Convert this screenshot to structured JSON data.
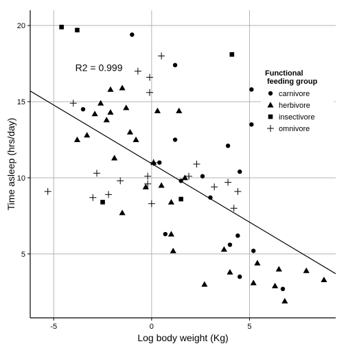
{
  "chart_data": {
    "type": "scatter",
    "xlabel": "Log body weight (Kg)",
    "ylabel": "Time asleep (hrs/day)",
    "xlim": [
      -6.2,
      9.4
    ],
    "ylim": [
      0.8,
      21.0
    ],
    "x_ticks": [
      -5,
      0,
      5
    ],
    "y_ticks": [
      5,
      10,
      15,
      20
    ],
    "grid": true,
    "annotation": {
      "text": "R2 = 0.999",
      "x": -3.9,
      "y": 17.0
    },
    "regression": {
      "x0": -6.2,
      "y0": 15.7,
      "x1": 9.4,
      "y1": 3.7
    },
    "legend": {
      "title": "Functional\nfeeding group",
      "position": "right",
      "entries": [
        {
          "label": "carnivore",
          "shape": "circle"
        },
        {
          "label": "herbivore",
          "shape": "triangle"
        },
        {
          "label": "insectivore",
          "shape": "square"
        },
        {
          "label": "omnivore",
          "shape": "plus"
        }
      ]
    },
    "series": [
      {
        "name": "carnivore",
        "shape": "circle",
        "points": [
          [
            -1.0,
            19.4
          ],
          [
            1.2,
            17.4
          ],
          [
            5.1,
            15.8
          ],
          [
            -3.5,
            14.5
          ],
          [
            5.1,
            13.5
          ],
          [
            1.2,
            12.5
          ],
          [
            3.9,
            12.1
          ],
          [
            0.4,
            11.0
          ],
          [
            4.5,
            10.4
          ],
          [
            2.6,
            10.1
          ],
          [
            1.5,
            9.8
          ],
          [
            3.0,
            8.7
          ],
          [
            0.7,
            6.3
          ],
          [
            4.4,
            6.2
          ],
          [
            4.0,
            5.6
          ],
          [
            5.2,
            5.2
          ],
          [
            4.5,
            3.5
          ],
          [
            6.7,
            2.7
          ]
        ]
      },
      {
        "name": "herbivore",
        "shape": "triangle",
        "points": [
          [
            -2.1,
            15.8
          ],
          [
            -1.5,
            15.9
          ],
          [
            -2.6,
            14.9
          ],
          [
            -1.3,
            14.6
          ],
          [
            0.3,
            14.4
          ],
          [
            1.4,
            14.4
          ],
          [
            -2.1,
            14.3
          ],
          [
            -2.9,
            14.2
          ],
          [
            -2.3,
            13.8
          ],
          [
            -1.1,
            13.0
          ],
          [
            -3.3,
            12.8
          ],
          [
            -3.8,
            12.5
          ],
          [
            -0.8,
            12.5
          ],
          [
            -1.9,
            11.3
          ],
          [
            0.1,
            11.0
          ],
          [
            -0.3,
            9.4
          ],
          [
            0.5,
            9.5
          ],
          [
            1.7,
            10.0
          ],
          [
            1.0,
            8.4
          ],
          [
            -1.5,
            7.7
          ],
          [
            1.0,
            6.3
          ],
          [
            1.1,
            5.2
          ],
          [
            3.7,
            5.3
          ],
          [
            5.4,
            4.4
          ],
          [
            4.0,
            3.8
          ],
          [
            5.2,
            3.1
          ],
          [
            6.5,
            4.0
          ],
          [
            7.9,
            3.9
          ],
          [
            8.8,
            3.3
          ],
          [
            6.3,
            2.9
          ],
          [
            6.8,
            1.9
          ],
          [
            2.7,
            3.0
          ]
        ]
      },
      {
        "name": "insectivore",
        "shape": "square",
        "points": [
          [
            -4.6,
            19.9
          ],
          [
            -3.8,
            19.7
          ],
          [
            4.1,
            18.1
          ],
          [
            -2.5,
            8.4
          ],
          [
            1.5,
            8.6
          ]
        ]
      },
      {
        "name": "omnivore",
        "shape": "plus",
        "points": [
          [
            0.5,
            18.0
          ],
          [
            -0.7,
            17.0
          ],
          [
            -0.1,
            16.6
          ],
          [
            -0.1,
            15.6
          ],
          [
            -4.0,
            14.9
          ],
          [
            0.1,
            11.0
          ],
          [
            2.3,
            10.9
          ],
          [
            -2.8,
            10.3
          ],
          [
            -0.2,
            10.1
          ],
          [
            1.9,
            10.1
          ],
          [
            -1.6,
            9.8
          ],
          [
            -0.2,
            9.6
          ],
          [
            3.9,
            9.7
          ],
          [
            3.2,
            9.4
          ],
          [
            -5.3,
            9.1
          ],
          [
            4.4,
            9.1
          ],
          [
            -2.2,
            8.9
          ],
          [
            -3.0,
            8.7
          ],
          [
            0.0,
            8.3
          ],
          [
            4.2,
            8.0
          ]
        ]
      }
    ]
  }
}
